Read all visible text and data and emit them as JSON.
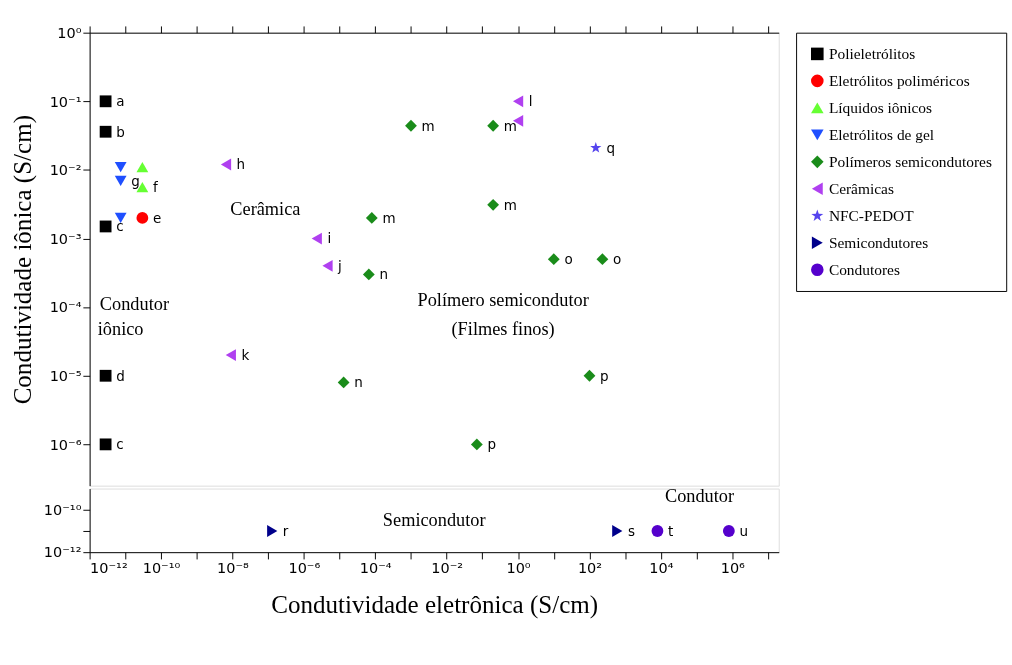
{
  "chart_data": [
    {
      "type": "scatter",
      "ylabel": "Condutividade iônica (S/cm)",
      "legend": "top right",
      "grid": false,
      "log": "xy",
      "tick_labels": "y",
      "xlim": [
        1e-12,
        20000000.0
      ],
      "xticks": [
        {
          "value": 1e-12,
          "label": null
        },
        {
          "value": 1e-11,
          "label": null
        },
        {
          "value": 1e-10,
          "label": null
        },
        {
          "value": 1e-09,
          "label": null
        },
        {
          "value": 1e-08,
          "label": null
        },
        {
          "value": 1e-07,
          "label": null
        },
        {
          "value": 1e-06,
          "label": null
        },
        {
          "value": 1e-05,
          "label": null
        },
        {
          "value": 0.0001,
          "label": null
        },
        {
          "value": 0.001,
          "label": null
        },
        {
          "value": 0.01,
          "label": null
        },
        {
          "value": 0.1,
          "label": null
        },
        {
          "value": 1,
          "label": null
        },
        {
          "value": 10,
          "label": null
        },
        {
          "value": 100,
          "label": null
        },
        {
          "value": 1000,
          "label": null
        },
        {
          "value": 10000.0,
          "label": null
        },
        {
          "value": 100000.0,
          "label": null
        },
        {
          "value": 1000000.0,
          "label": null
        },
        {
          "value": 10000000.0,
          "label": null
        }
      ],
      "ylim": [
        2.5e-07,
        1
      ],
      "yticks": [
        {
          "value": 1e-06,
          "label": "10⁻⁶"
        },
        {
          "value": 1e-05,
          "label": "10⁻⁵"
        },
        {
          "value": 0.0001,
          "label": "10⁻⁴"
        },
        {
          "value": 0.001,
          "label": "10⁻³"
        },
        {
          "value": 0.01,
          "label": "10⁻²"
        },
        {
          "value": 0.1,
          "label": "10⁻¹"
        },
        {
          "value": 1,
          "label": "10⁰"
        }
      ],
      "series": [
        {
          "name": "Polieletrólitos",
          "color": "#000000",
          "marker": "square",
          "x": [
            2.8e-12,
            2.8e-12,
            2.8e-12,
            2.8e-12,
            2.8e-12
          ],
          "values": [
            0.1,
            0.036,
            0.0015,
            1e-05,
            1e-06
          ],
          "value_labels": [
            "a",
            "b",
            "c",
            "d",
            "c"
          ]
        },
        {
          "name": "Eletrólitos poliméricos",
          "color": "#ff0000",
          "marker": "circle",
          "x": [
            3e-11
          ],
          "values": [
            0.002
          ],
          "value_labels": [
            "e"
          ]
        },
        {
          "name": "Líquidos iônicos",
          "color": "#66ff33",
          "marker": "triangle",
          "x": [
            3e-11,
            3e-11
          ],
          "values": [
            0.011,
            0.0056
          ],
          "value_labels": [
            null,
            "f"
          ]
        },
        {
          "name": "Eletrólitos de gel",
          "color": "#1f4fff",
          "marker": "triangle-down",
          "x": [
            7.4e-12,
            7.4e-12,
            7.4e-12
          ],
          "values": [
            0.011,
            0.0069,
            0.002
          ],
          "value_labels": [
            null,
            "g",
            null
          ]
        },
        {
          "name": "Polímeros semicondutores",
          "color": "#1a8c1a",
          "marker": "diamond",
          "x": [
            0.001,
            0.2,
            0.2,
            8e-05,
            6.6e-05,
            1.3e-05,
            0.07,
            100,
            10,
            230
          ],
          "values": [
            0.044,
            0.044,
            0.0031,
            0.002,
            0.0003,
            8e-06,
            1e-06,
            1e-05,
            0.0005,
            0.0005
          ],
          "value_labels": [
            "m",
            "m",
            "m",
            "m",
            "n",
            "n",
            "p",
            "p",
            "o",
            "o"
          ]
        },
        {
          "name": "Cerâmicas",
          "color": "#b040f0",
          "marker": "triangle-left",
          "x": [
            6.6e-09,
            2.3e-06,
            4.6e-06,
            9e-09,
            1,
            1
          ],
          "values": [
            0.012,
            0.001,
            0.0004,
            2e-05,
            0.1,
            0.052
          ],
          "value_labels": [
            "h",
            "i",
            "j",
            "k",
            "l",
            null
          ]
        },
        {
          "name": "NFC-PEDOT",
          "color": "#5544ee",
          "marker": "star",
          "x": [
            150
          ],
          "values": [
            0.021
          ],
          "value_labels": [
            "q"
          ]
        }
      ],
      "annotations": [
        "Cerâmica",
        "Polímero semicondutor",
        "(Filmes finos)",
        "Condutor",
        "iônico"
      ]
    },
    {
      "type": "scatter",
      "xlabel": "Condutividade eletrônica (S/cm)",
      "grid": false,
      "log": "xy",
      "legend": "top right",
      "xlim": [
        1e-12,
        20000000.0
      ],
      "xticks": [
        {
          "value": 1e-12,
          "label": "10⁻¹²"
        },
        {
          "value": 1e-11,
          "label": null
        },
        {
          "value": 1e-10,
          "label": "10⁻¹⁰"
        },
        {
          "value": 1e-09,
          "label": null
        },
        {
          "value": 1e-08,
          "label": "10⁻⁸"
        },
        {
          "value": 1e-07,
          "label": null
        },
        {
          "value": 1e-06,
          "label": "10⁻⁶"
        },
        {
          "value": 1e-05,
          "label": null
        },
        {
          "value": 0.0001,
          "label": "10⁻⁴"
        },
        {
          "value": 0.001,
          "label": null
        },
        {
          "value": 0.01,
          "label": "10⁻²"
        },
        {
          "value": 0.1,
          "label": null
        },
        {
          "value": 1,
          "label": "10⁰"
        },
        {
          "value": 10,
          "label": null
        },
        {
          "value": 100,
          "label": "10²"
        },
        {
          "value": 1000,
          "label": null
        },
        {
          "value": 10000.0,
          "label": "10⁴"
        },
        {
          "value": 100000.0,
          "label": null
        },
        {
          "value": 1000000.0,
          "label": "10⁶"
        },
        {
          "value": 10000000.0,
          "label": null
        }
      ],
      "ylim": [
        1e-12,
        1e-09
      ],
      "yticks": [
        {
          "value": 1e-12,
          "label": "10⁻¹²"
        },
        {
          "value": 1e-11,
          "label": null
        },
        {
          "value": 1e-10,
          "label": "10⁻¹⁰"
        }
      ],
      "series": [
        {
          "name": "Semicondutores",
          "color": "#00008b",
          "marker": "triangle-right",
          "x": [
            1.3e-07,
            600
          ],
          "values": [
            1e-11,
            1e-11
          ],
          "value_labels": [
            "r",
            "s"
          ]
        },
        {
          "name": "Condutores",
          "color": "#5500cc",
          "marker": "circle",
          "x": [
            8000.0,
            800000.0
          ],
          "values": [
            1e-11,
            1e-11
          ],
          "value_labels": [
            "t",
            "u"
          ]
        }
      ],
      "annotations": [
        "Semicondutor",
        "Condutor"
      ]
    }
  ]
}
